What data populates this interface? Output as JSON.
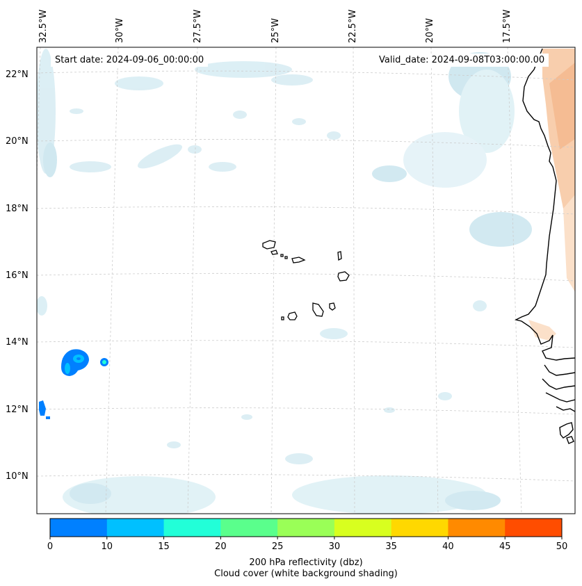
{
  "map": {
    "start_date": "Start date: 2024-09-06_00:00:00",
    "valid_date": "Valid_date: 2024-09-08T03:00:00.00",
    "longitude_labels": [
      "32.5°W",
      "30°W",
      "27.5°W",
      "25°W",
      "22.5°W",
      "20°W",
      "17.5°W"
    ],
    "latitude_labels": [
      "22°N",
      "20°N",
      "18°N",
      "16°N",
      "14°N",
      "12°N",
      "10°N"
    ],
    "colors": {
      "coastline": "#000000",
      "gridline": "#cccccc",
      "cloud_light": "#d6ecf3",
      "cloud_mid": "#bfe0ec",
      "land_warm": "#f7c9a4",
      "land_warm_light": "#fbe0c9"
    }
  },
  "colorbar": {
    "ticks": [
      "0",
      "10",
      "15",
      "20",
      "25",
      "30",
      "35",
      "40",
      "45",
      "50"
    ],
    "colors": [
      "#0080ff",
      "#00c0ff",
      "#22ffd8",
      "#5aff8c",
      "#9aff57",
      "#d8ff1f",
      "#ffd800",
      "#ff8a00",
      "#ff4d00"
    ],
    "label_line1": "200 hPa reflectivity (dbz)",
    "label_line2": "Cloud cover (white background shading)"
  }
}
